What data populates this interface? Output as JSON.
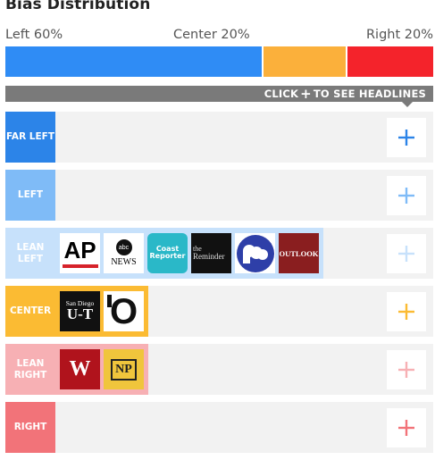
{
  "title": "Bias Distribution",
  "distribution": {
    "left_label": "Left 60%",
    "center_label": "Center 20%",
    "right_label": "Right 20%",
    "left_percent": 60,
    "center_percent": 20,
    "right_percent": 20,
    "colors": {
      "left": "#2f8cf5",
      "center": "#fbb03b",
      "right": "#f4232b"
    }
  },
  "banner": {
    "prefix": "CLICK",
    "suffix": "TO SEE HEADLINES"
  },
  "rows": [
    {
      "label": "FAR LEFT",
      "label_color": "#2c84e8",
      "plus_color": "#2c84e8",
      "sources_bg": "",
      "sources": []
    },
    {
      "label": "LEFT",
      "label_color": "#7fbbf7",
      "plus_color": "#7fbbf7",
      "sources_bg": "",
      "sources": []
    },
    {
      "label": "LEAN LEFT",
      "label_color": "#c7e1fb",
      "plus_color": "#c7e1fb",
      "sources_bg": "#c7e1fb",
      "sources": [
        {
          "name": "ap-logo",
          "text": "AP"
        },
        {
          "name": "abc-news-logo",
          "text": "abc",
          "text2": "NEWS"
        },
        {
          "name": "coast-reporter-logo",
          "text": "Coast",
          "text2": "Reporter"
        },
        {
          "name": "the-reminder-logo",
          "text": "the",
          "text2": "Reminder"
        },
        {
          "name": "pbs-logo",
          "text": ""
        },
        {
          "name": "outlook-logo",
          "text": "OUTLOOK"
        }
      ]
    },
    {
      "label": "CENTER",
      "label_color": "#fbbb33",
      "plus_color": "#fbbb33",
      "sources_bg": "#fbbb33",
      "sources": [
        {
          "name": "san-diego-ut-logo",
          "text": "San Diego",
          "text2": "U-T"
        },
        {
          "name": "observer-logo",
          "text": "O"
        }
      ]
    },
    {
      "label": "LEAN RIGHT",
      "label_color": "#f7b0b4",
      "plus_color": "#f7b0b4",
      "sources_bg": "#f7b0b4",
      "sources": [
        {
          "name": "washington-times-logo",
          "text": "W"
        },
        {
          "name": "np-logo",
          "text": "NP"
        }
      ]
    },
    {
      "label": "RIGHT",
      "label_color": "#f27379",
      "plus_color": "#f27379",
      "sources_bg": "",
      "sources": []
    }
  ]
}
